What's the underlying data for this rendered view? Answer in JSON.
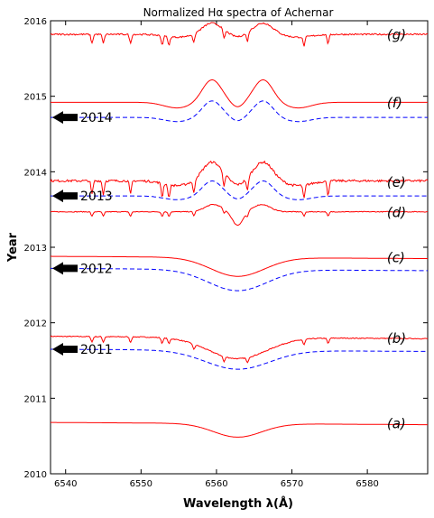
{
  "chart_data": {
    "type": "line",
    "title": "Normalized Hα spectra of Achernar",
    "xlabel": "Wavelength λ(Å)",
    "ylabel": "Year",
    "xlim": [
      6538,
      6588
    ],
    "ylim": [
      2010,
      2016
    ],
    "x_ticks": [
      6540,
      6550,
      6560,
      6570,
      6580
    ],
    "y_ticks": [
      2010,
      2011,
      2012,
      2013,
      2014,
      2015,
      2016
    ],
    "grid": false,
    "series": [
      {
        "label": "(a)",
        "kind": "observed",
        "color": "#ff0000",
        "style": "solid",
        "baseline": 2010.68,
        "label_pos": [
          6582.6,
          2010.65
        ],
        "profile": "absorption",
        "depth": 0.18,
        "width": 4.5,
        "noise": 0.0
      },
      {
        "label": "(b)",
        "kind": "observed",
        "color": "#ff0000",
        "style": "solid",
        "baseline": 2011.82,
        "label_pos": [
          6582.6,
          2011.78
        ],
        "profile": "absorption",
        "depth": 0.28,
        "width": 5.5,
        "noise": 0.012
      },
      {
        "label": "",
        "kind": "model",
        "color": "#0000ff",
        "style": "dashed",
        "baseline": 2011.65,
        "profile": "absorption",
        "depth": 0.25,
        "width": 6.0,
        "noise": 0.0
      },
      {
        "label": "(c)",
        "kind": "observed",
        "color": "#ff0000",
        "style": "solid",
        "baseline": 2012.88,
        "label_pos": [
          6582.6,
          2012.85
        ],
        "profile": "absorption",
        "depth": 0.25,
        "width": 5.0,
        "noise": 0.0
      },
      {
        "label": "",
        "kind": "model",
        "color": "#0000ff",
        "style": "dashed",
        "baseline": 2012.72,
        "profile": "absorption",
        "depth": 0.28,
        "width": 5.5,
        "noise": 0.0
      },
      {
        "label": "(d)",
        "kind": "observed",
        "color": "#ff0000",
        "style": "solid",
        "baseline": 2013.47,
        "label_pos": [
          6582.6,
          2013.45
        ],
        "profile": "weak-emission",
        "depth": 0.12,
        "width": 3.0,
        "noise": 0.01
      },
      {
        "label": "(e)",
        "kind": "observed",
        "color": "#ff0000",
        "style": "solid",
        "baseline": 2013.88,
        "label_pos": [
          6582.6,
          2013.85
        ],
        "profile": "double-peak",
        "depth": 0.25,
        "width": 3.0,
        "noise": 0.03
      },
      {
        "label": "",
        "kind": "model",
        "color": "#0000ff",
        "style": "dashed",
        "baseline": 2013.68,
        "profile": "double-peak",
        "depth": 0.2,
        "width": 3.0,
        "noise": 0.0
      },
      {
        "label": "(f)",
        "kind": "observed",
        "color": "#ff0000",
        "style": "solid",
        "baseline": 2014.92,
        "label_pos": [
          6582.6,
          2014.9
        ],
        "profile": "double-peak",
        "depth": 0.3,
        "width": 3.2,
        "noise": 0.0
      },
      {
        "label": "",
        "kind": "model",
        "color": "#0000ff",
        "style": "dashed",
        "baseline": 2014.72,
        "profile": "double-peak",
        "depth": 0.22,
        "width": 3.0,
        "noise": 0.0
      },
      {
        "label": "(g)",
        "kind": "observed",
        "color": "#ff0000",
        "style": "solid",
        "baseline": 2015.82,
        "label_pos": [
          6582.6,
          2015.8
        ],
        "profile": "double-peak",
        "depth": 0.15,
        "width": 3.2,
        "noise": 0.02
      }
    ],
    "year_markers": [
      {
        "label": "2011",
        "year": 2011.65
      },
      {
        "label": "2012",
        "year": 2012.72
      },
      {
        "label": "2013",
        "year": 2013.68
      },
      {
        "label": "2014",
        "year": 2014.72
      }
    ]
  }
}
